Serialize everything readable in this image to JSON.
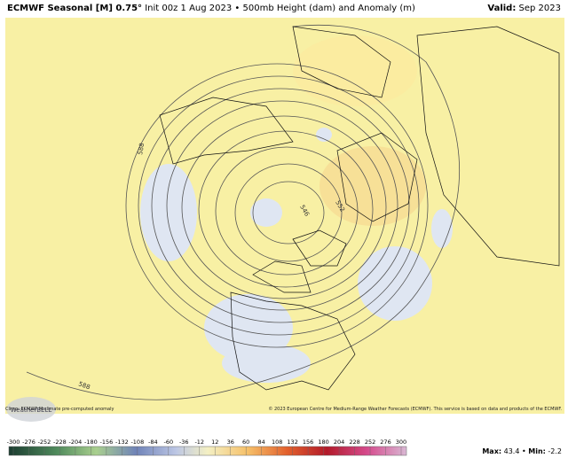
{
  "header": {
    "title_bold": "ECMWF Seasonal [M] 0.75°",
    "title_rest": "Init 00z 1 Aug 2023 • 500mb Height (dam) and Anomaly (m)",
    "valid_label": "Valid:",
    "valid_value": "Sep 2023"
  },
  "map": {
    "contour_labels": [
      "588",
      "588",
      "546",
      "552"
    ],
    "logo": "WeatherBELL"
  },
  "footer": {
    "climo": "Climo: ECMWF M-climate pre-computed anomaly",
    "copyright": "© 2023 European Centre for Medium-Range Weather Forecasts (ECMWF). This service is based on data and products of the ECMWF."
  },
  "colorbar": {
    "ticks": [
      -300,
      -276,
      -252,
      -228,
      -204,
      -180,
      -156,
      -132,
      -108,
      -84,
      -60,
      -36,
      -12,
      12,
      36,
      60,
      84,
      108,
      132,
      156,
      180,
      204,
      228,
      252,
      276,
      300
    ]
  },
  "stats": {
    "max_label": "Max:",
    "max": 43.4,
    "separator": "•",
    "min_label": "Min:",
    "min": -2.2
  }
}
